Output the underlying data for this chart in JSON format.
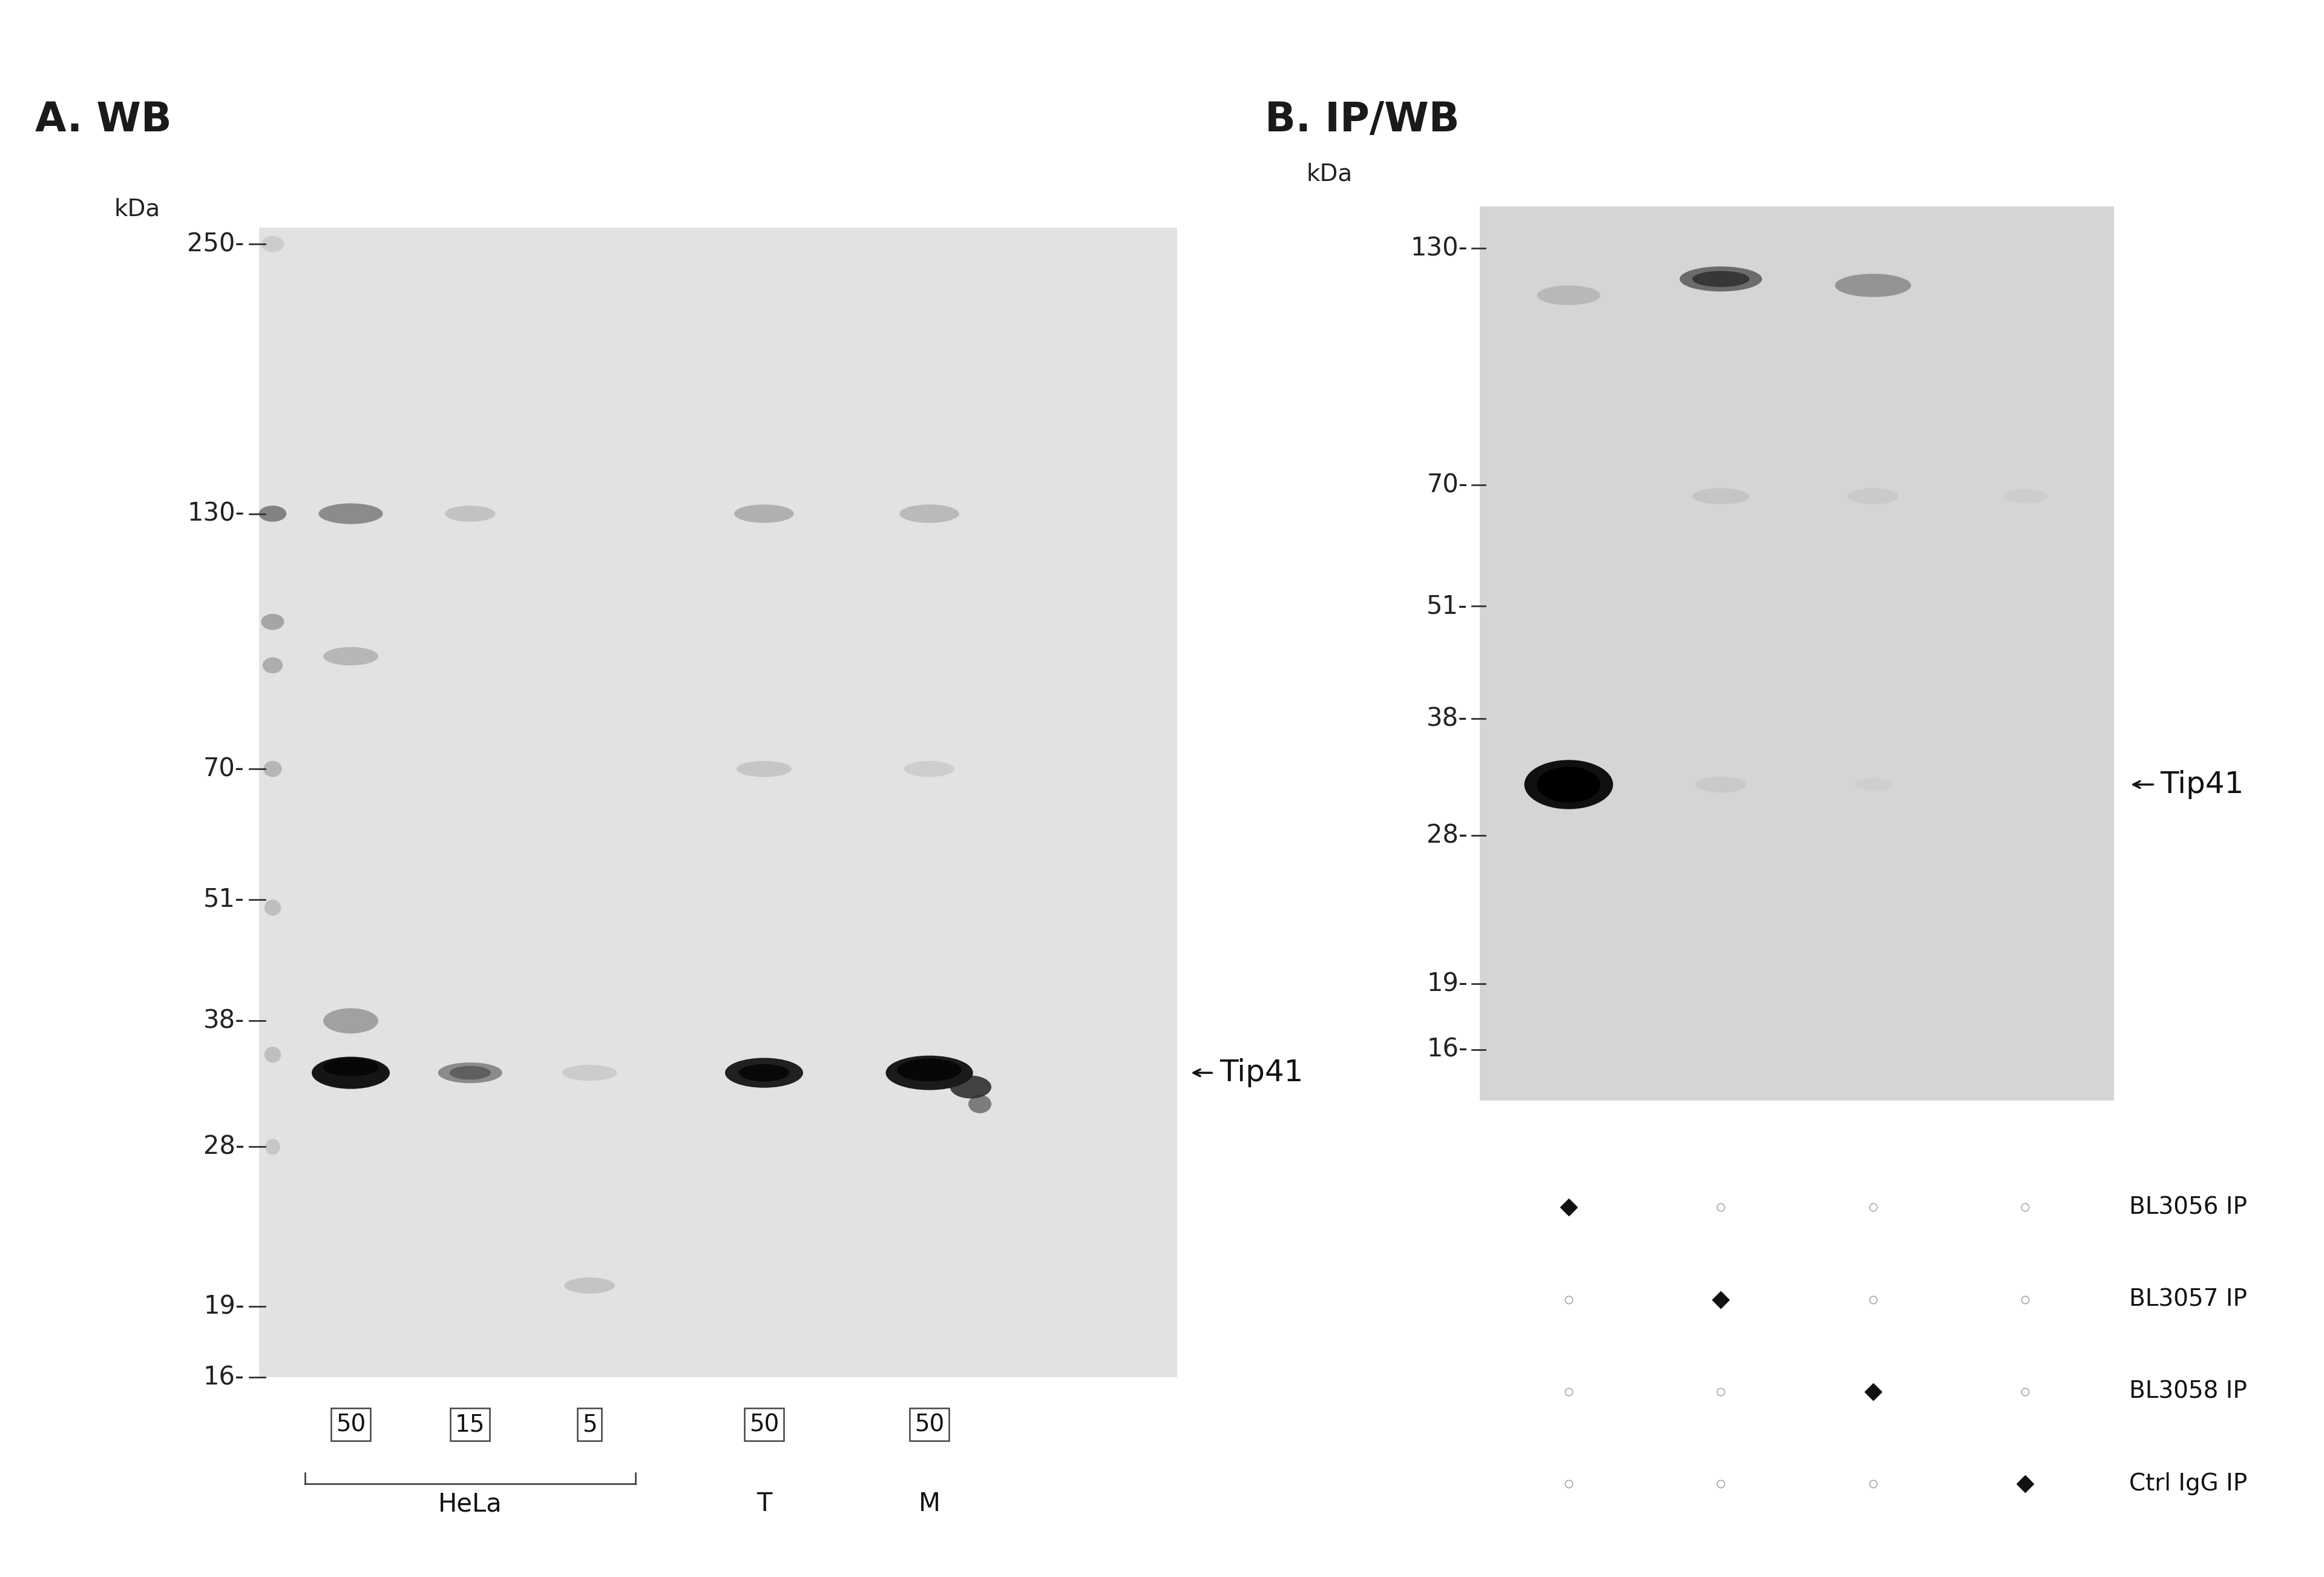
{
  "fig_width": 38.4,
  "fig_height": 26.05,
  "bg_color": "#ffffff",
  "panel_A_title": "A. WB",
  "panel_B_title": "B. IP/WB",
  "kda_label": "kDa",
  "wb_markers": [
    250,
    130,
    70,
    51,
    38,
    28,
    19,
    16
  ],
  "ip_markers": [
    130,
    70,
    51,
    38,
    28,
    19,
    16
  ],
  "tip41_label": "Tip41",
  "sample_labels_wb": [
    "50",
    "15",
    "5",
    "50",
    "50"
  ],
  "ip_row_labels": [
    "BL3056 IP",
    "BL3057 IP",
    "BL3058 IP",
    "Ctrl IgG IP"
  ],
  "panel_a_blot_color": "#e2e2e2",
  "panel_b_blot_color": "#d5d5d5",
  "band_dark": "#111111",
  "band_mid": "#555555",
  "band_light": "#999999"
}
